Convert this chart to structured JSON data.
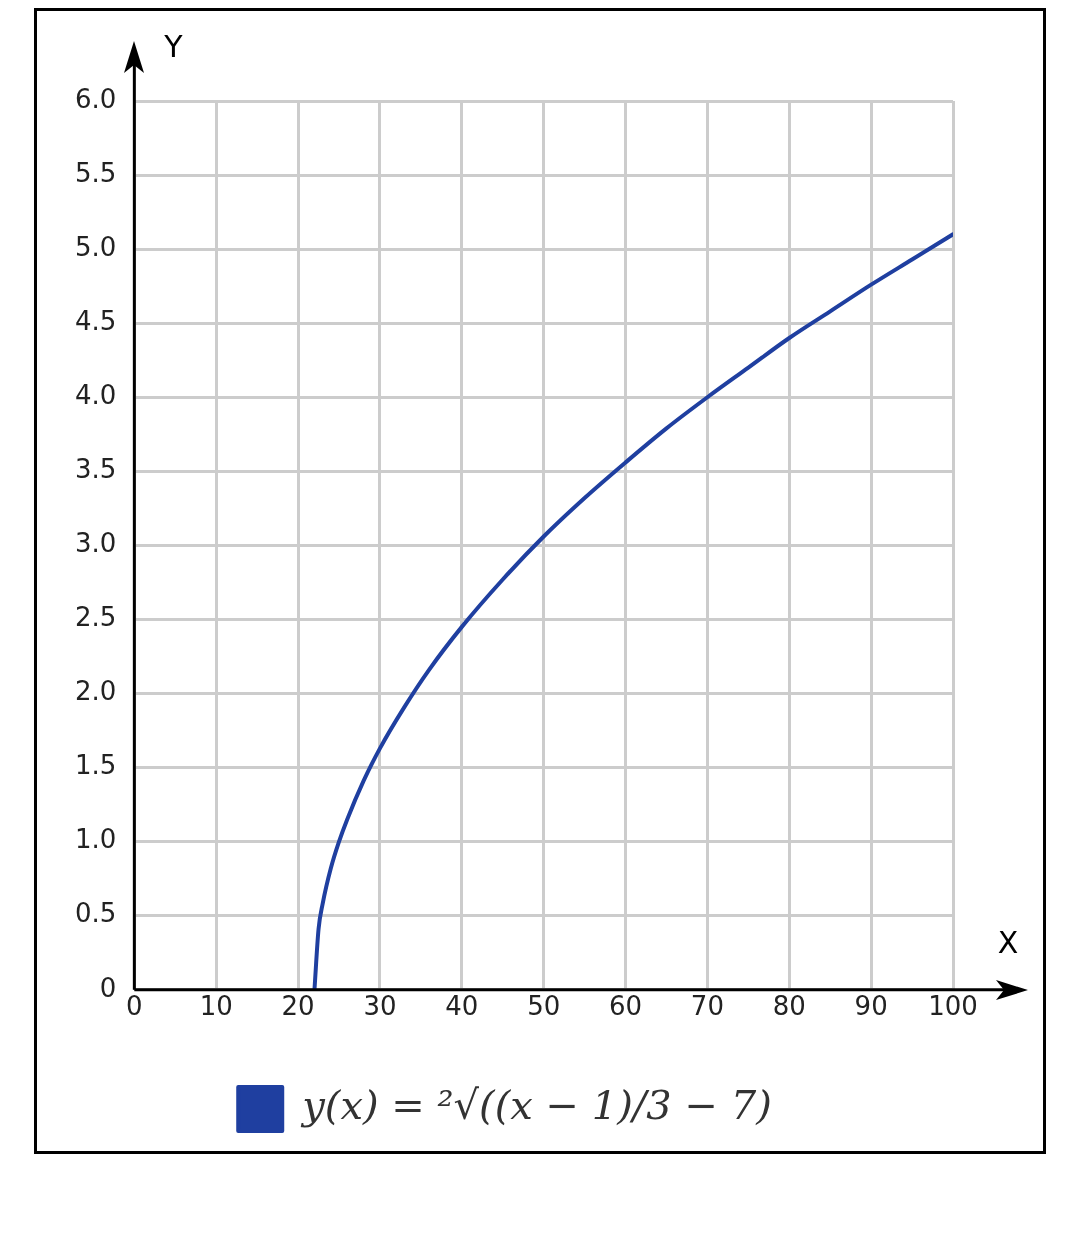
{
  "chart_data": {
    "type": "line",
    "xlabel": "X",
    "ylabel": "Y",
    "xlim": [
      0,
      100
    ],
    "ylim": [
      0,
      6
    ],
    "xticks": [
      0,
      10,
      20,
      30,
      40,
      50,
      60,
      70,
      80,
      90,
      100
    ],
    "yticks": [
      {
        "value": 0,
        "label": "0"
      },
      {
        "value": 0.5,
        "label": "0.5"
      },
      {
        "value": 1,
        "label": "1.0"
      },
      {
        "value": 1.5,
        "label": "1.5"
      },
      {
        "value": 2,
        "label": "2.0"
      },
      {
        "value": 2.5,
        "label": "2.5"
      },
      {
        "value": 3,
        "label": "3.0"
      },
      {
        "value": 3.5,
        "label": "3.5"
      },
      {
        "value": 4,
        "label": "4.0"
      },
      {
        "value": 4.5,
        "label": "4.5"
      },
      {
        "value": 5,
        "label": "5.0"
      },
      {
        "value": 5.5,
        "label": "5.5"
      },
      {
        "value": 6,
        "label": "6.0"
      }
    ],
    "grid": true,
    "legend": "bottom",
    "marker": "none",
    "line_style": "solid",
    "series": [
      {
        "name": "y(x) = ²√((x − 1)/3 − 7)",
        "color": "#1f3fa0",
        "x": [
          22,
          22.5,
          23,
          24,
          25,
          26,
          28,
          30,
          33,
          36,
          40,
          45,
          50,
          55,
          60,
          65,
          70,
          75,
          80,
          85,
          90,
          95,
          100
        ],
        "values": [
          0,
          0.41,
          0.58,
          0.82,
          1.0,
          1.15,
          1.41,
          1.63,
          1.91,
          2.16,
          2.45,
          2.77,
          3.06,
          3.32,
          3.56,
          3.79,
          4.0,
          4.2,
          4.4,
          4.58,
          4.76,
          4.93,
          5.1
        ]
      }
    ]
  }
}
